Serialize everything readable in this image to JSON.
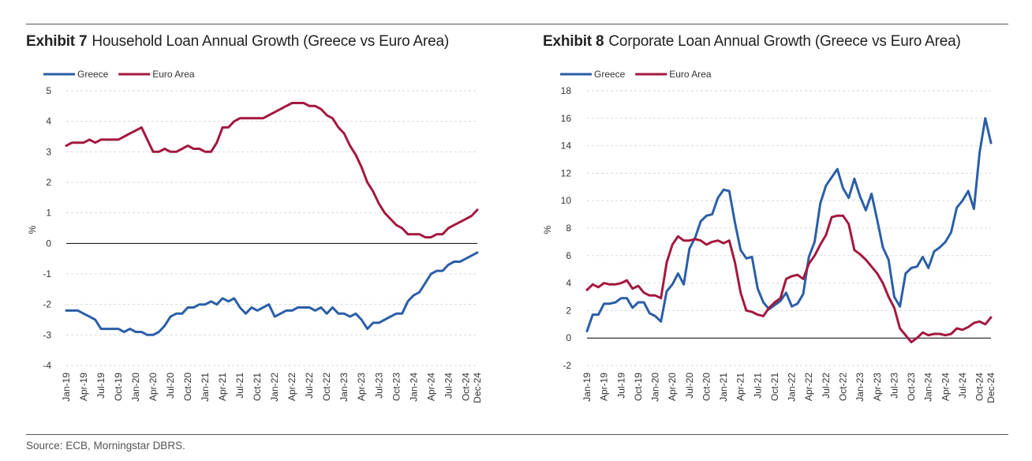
{
  "source": "Source: ECB, Morningstar DBRS.",
  "colors": {
    "greece": "#2b5ea7",
    "euro_area": "#a3183f",
    "grid": "#d9d9d9",
    "zero": "#000000"
  },
  "chart_data": [
    {
      "type": "line",
      "exhibit": "Exhibit 7",
      "title": "Household Loan Annual Growth (Greece vs Euro Area)",
      "ylabel": "%",
      "xlabel": "",
      "ylim": [
        -4,
        5
      ],
      "yticks": [
        5,
        4,
        3,
        2,
        1,
        0,
        -1,
        -2,
        -3,
        -4
      ],
      "xtick_labels": [
        "Jan-19",
        "Apr-19",
        "Jul-19",
        "Oct-19",
        "Jan-20",
        "Apr-20",
        "Jul-20",
        "Oct-20",
        "Jan-21",
        "Apr-21",
        "Jul-21",
        "Oct-21",
        "Jan-22",
        "Apr-22",
        "Jul-22",
        "Oct-22",
        "Jan-23",
        "Apr-23",
        "Jul-23",
        "Oct-23",
        "Jan-24",
        "Apr-24",
        "Jul-24",
        "Oct-24",
        "Dec-24"
      ],
      "legend_position": "top-left",
      "series": [
        {
          "name": "Greece",
          "color_key": "greece",
          "values": [
            -2.2,
            -2.2,
            -2.2,
            -2.3,
            -2.4,
            -2.5,
            -2.8,
            -2.8,
            -2.8,
            -2.8,
            -2.9,
            -2.8,
            -2.9,
            -2.9,
            -3.0,
            -3.0,
            -2.9,
            -2.7,
            -2.4,
            -2.3,
            -2.3,
            -2.1,
            -2.1,
            -2.0,
            -2.0,
            -1.9,
            -2.0,
            -1.8,
            -1.9,
            -1.8,
            -2.1,
            -2.3,
            -2.1,
            -2.2,
            -2.1,
            -2.0,
            -2.4,
            -2.3,
            -2.2,
            -2.2,
            -2.1,
            -2.1,
            -2.1,
            -2.2,
            -2.1,
            -2.3,
            -2.1,
            -2.3,
            -2.3,
            -2.4,
            -2.3,
            -2.5,
            -2.8,
            -2.6,
            -2.6,
            -2.5,
            -2.4,
            -2.3,
            -2.3,
            -1.9,
            -1.7,
            -1.6,
            -1.3,
            -1.0,
            -0.9,
            -0.9,
            -0.7,
            -0.6,
            -0.6,
            -0.5,
            -0.4,
            -0.3
          ]
        },
        {
          "name": "Euro Area",
          "color_key": "euro_area",
          "values": [
            3.2,
            3.3,
            3.3,
            3.3,
            3.4,
            3.3,
            3.4,
            3.4,
            3.4,
            3.4,
            3.5,
            3.6,
            3.7,
            3.8,
            3.4,
            3.0,
            3.0,
            3.1,
            3.0,
            3.0,
            3.1,
            3.2,
            3.1,
            3.1,
            3.0,
            3.0,
            3.3,
            3.8,
            3.8,
            4.0,
            4.1,
            4.1,
            4.1,
            4.1,
            4.1,
            4.2,
            4.3,
            4.4,
            4.5,
            4.6,
            4.6,
            4.6,
            4.5,
            4.5,
            4.4,
            4.2,
            4.1,
            3.8,
            3.6,
            3.2,
            2.9,
            2.5,
            2.0,
            1.7,
            1.3,
            1.0,
            0.8,
            0.6,
            0.5,
            0.3,
            0.3,
            0.3,
            0.2,
            0.2,
            0.3,
            0.3,
            0.5,
            0.6,
            0.7,
            0.8,
            0.9,
            1.1
          ]
        }
      ]
    },
    {
      "type": "line",
      "exhibit": "Exhibit 8",
      "title": "Corporate Loan Annual Growth (Greece vs Euro Area)",
      "ylabel": "%",
      "xlabel": "",
      "ylim": [
        -2,
        18
      ],
      "yticks": [
        18,
        16,
        14,
        12,
        10,
        8,
        6,
        4,
        2,
        0,
        -2
      ],
      "xtick_labels": [
        "Jan-19",
        "Apr-19",
        "Jul-19",
        "Oct-19",
        "Jan-20",
        "Apr-20",
        "Jul-20",
        "Oct-20",
        "Jan-21",
        "Apr-21",
        "Jul-21",
        "Oct-21",
        "Jan-22",
        "Apr-22",
        "Jul-22",
        "Oct-22",
        "Jan-23",
        "Apr-23",
        "Jul-23",
        "Oct-23",
        "Jan-24",
        "Apr-24",
        "Jul-24",
        "Oct-24",
        "Dec-24"
      ],
      "legend_position": "top-left",
      "series": [
        {
          "name": "Greece",
          "color_key": "greece",
          "values": [
            0.5,
            1.7,
            1.7,
            2.5,
            2.5,
            2.6,
            2.9,
            2.9,
            2.2,
            2.6,
            2.6,
            1.8,
            1.6,
            1.2,
            3.4,
            3.9,
            4.7,
            3.9,
            6.5,
            7.3,
            8.5,
            8.9,
            9.0,
            10.2,
            10.8,
            10.7,
            8.4,
            6.4,
            5.8,
            5.9,
            3.6,
            2.6,
            2.1,
            2.4,
            2.7,
            3.3,
            2.3,
            2.5,
            3.2,
            5.9,
            7.0,
            9.8,
            11.1,
            11.7,
            12.3,
            10.9,
            10.2,
            11.6,
            10.3,
            9.3,
            10.5,
            8.6,
            6.6,
            5.7,
            3.0,
            2.3,
            4.7,
            5.1,
            5.2,
            5.9,
            5.1,
            6.3,
            6.6,
            7.0,
            7.7,
            9.5,
            10.0,
            10.7,
            9.4,
            13.5,
            16.0,
            14.2
          ]
        },
        {
          "name": "Euro Area",
          "color_key": "euro_area",
          "values": [
            3.5,
            3.9,
            3.7,
            4.0,
            3.9,
            3.9,
            4.0,
            4.2,
            3.6,
            3.8,
            3.3,
            3.1,
            3.1,
            2.9,
            5.5,
            6.8,
            7.4,
            7.1,
            7.1,
            7.2,
            7.1,
            6.8,
            7.0,
            7.1,
            6.9,
            7.1,
            5.5,
            3.3,
            2.0,
            1.9,
            1.7,
            1.6,
            2.2,
            2.6,
            2.9,
            4.3,
            4.5,
            4.6,
            4.3,
            5.4,
            6.0,
            6.8,
            7.5,
            8.8,
            8.9,
            8.9,
            8.3,
            6.4,
            6.1,
            5.7,
            5.2,
            4.7,
            4.0,
            3.0,
            2.2,
            0.7,
            0.2,
            -0.3,
            0.0,
            0.4,
            0.2,
            0.3,
            0.3,
            0.2,
            0.3,
            0.7,
            0.6,
            0.8,
            1.1,
            1.2,
            1.0,
            1.5
          ]
        }
      ]
    }
  ]
}
